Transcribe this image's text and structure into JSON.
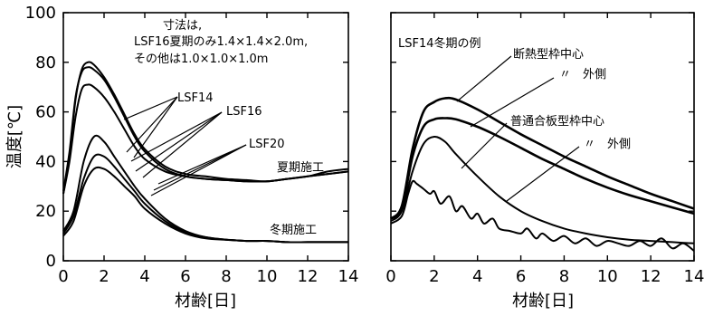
{
  "chart_data": [
    {
      "type": "line",
      "xlabel": "材齢[日]",
      "ylabel": "温度[℃]",
      "xlim": [
        0,
        14
      ],
      "ylim": [
        0,
        100
      ],
      "xticks": [
        "0",
        "2",
        "4",
        "6",
        "8",
        "10",
        "12",
        "14"
      ],
      "yticks": [
        "0",
        "20",
        "40",
        "60",
        "80",
        "100"
      ],
      "annotations": {
        "note_line1": "寸法は,",
        "note_line2": "LSF16夏期のみ1.4×1.4×2.0m,",
        "note_line3": "その他は1.0×1.0×1.0m",
        "label_lsf14": "LSF14",
        "label_lsf16": "LSF16",
        "label_lsf20": "LSF20",
        "label_summer": "夏期施工",
        "label_winter": "冬期施工"
      },
      "series": [
        {
          "x": [
            0,
            0.3,
            0.6,
            0.9,
            1.2,
            1.5,
            2,
            2.5,
            3,
            3.5,
            4,
            5,
            6,
            7,
            8,
            9,
            10,
            11,
            12,
            13,
            14
          ],
          "y": [
            27,
            42,
            65,
            77,
            80,
            79,
            74,
            67,
            59,
            51,
            45,
            38,
            35,
            34,
            33,
            32.5,
            32,
            33,
            34,
            35,
            36
          ]
        },
        {
          "x": [
            0,
            0.3,
            0.6,
            0.9,
            1.2,
            1.5,
            2,
            2.5,
            3,
            3.5,
            4,
            5,
            6,
            7,
            8,
            9,
            10,
            11,
            12,
            13,
            14
          ],
          "y": [
            28,
            44,
            66,
            76,
            78,
            77,
            73,
            66,
            58,
            50,
            44,
            37,
            34,
            33,
            32.5,
            32,
            32,
            33,
            34,
            35,
            36
          ]
        },
        {
          "x": [
            0,
            0.3,
            0.6,
            0.9,
            1.2,
            1.5,
            2,
            2.5,
            3,
            3.5,
            4,
            5,
            6,
            7,
            8,
            9,
            10,
            11,
            12,
            13,
            14
          ],
          "y": [
            27,
            40,
            58,
            69,
            71,
            70,
            66,
            60,
            53,
            46,
            41,
            36,
            34,
            33,
            32.5,
            32,
            32,
            33,
            34,
            36,
            37
          ]
        },
        {
          "x": [
            0,
            0.5,
            1,
            1.5,
            2,
            2.5,
            3,
            3.5,
            4,
            5,
            6,
            7,
            8,
            9,
            10,
            11,
            12,
            13,
            14
          ],
          "y": [
            12,
            20,
            40,
            50,
            48,
            42,
            36,
            30,
            25,
            17,
            12,
            9.5,
            8.5,
            8,
            8,
            7.5,
            7.5,
            7.5,
            7.5
          ]
        },
        {
          "x": [
            0,
            0.5,
            1,
            1.5,
            2,
            2.5,
            3,
            3.5,
            4,
            5,
            6,
            7,
            8,
            9,
            10,
            11,
            12,
            13,
            14
          ],
          "y": [
            11,
            18,
            33,
            42,
            42,
            38,
            33,
            28,
            23,
            16,
            11.5,
            9.5,
            8.5,
            8,
            8,
            7.5,
            7.5,
            7.5,
            7.5
          ]
        },
        {
          "x": [
            0,
            0.5,
            1,
            1.5,
            2,
            2.5,
            3,
            3.5,
            4,
            5,
            6,
            7,
            8,
            9,
            10,
            11,
            12,
            13,
            14
          ],
          "y": [
            10,
            16,
            30,
            37,
            37,
            34,
            30,
            26,
            21,
            15,
            11,
            9,
            8.5,
            8,
            8,
            7.5,
            7.5,
            7.5,
            7.5
          ]
        }
      ]
    },
    {
      "type": "line",
      "xlabel": "材齢[日]",
      "ylabel": "",
      "xlim": [
        0,
        14
      ],
      "ylim": [
        0,
        100
      ],
      "xticks": [
        "0",
        "2",
        "4",
        "6",
        "8",
        "10",
        "12",
        "14"
      ],
      "annotations": {
        "title": "LSF14冬期の例",
        "label_insul_center": "断熱型枠中心",
        "label_insul_outer": "〃　外側",
        "label_ply_center": "普通合板型枠中心",
        "label_ply_outer": "〃　外側"
      },
      "series": [
        {
          "x": [
            0,
            0.5,
            1,
            1.5,
            2,
            2.5,
            3,
            4,
            5,
            6,
            7,
            8,
            9,
            10,
            11,
            12,
            13,
            14
          ],
          "y": [
            17,
            22,
            45,
            60,
            64,
            65.5,
            65,
            61,
            56,
            51,
            46.5,
            42,
            38,
            34,
            30.5,
            27,
            24,
            21
          ]
        },
        {
          "x": [
            0,
            0.5,
            1,
            1.5,
            2,
            2.5,
            3,
            4,
            5,
            6,
            7,
            8,
            9,
            10,
            11,
            12,
            13,
            14
          ],
          "y": [
            17,
            21,
            42,
            54,
            57,
            57.5,
            57,
            54,
            50,
            45.5,
            41,
            37,
            33,
            29.5,
            26.5,
            24,
            21.5,
            19
          ]
        },
        {
          "x": [
            0,
            0.5,
            1,
            1.5,
            2,
            2.5,
            3,
            4,
            5,
            6,
            7,
            8,
            9,
            10,
            11,
            12,
            13,
            14
          ],
          "y": [
            16,
            20,
            36,
            47,
            50,
            48,
            43,
            34,
            26,
            20,
            16,
            13,
            11,
            9.5,
            8.5,
            8,
            7.5,
            7
          ]
        },
        {
          "x": [
            0,
            0.5,
            0.8,
            1,
            1.2,
            1.5,
            1.8,
            2,
            2.3,
            2.7,
            3,
            3.3,
            3.7,
            4,
            4.3,
            4.7,
            5,
            5.5,
            6,
            6.3,
            6.7,
            7,
            7.5,
            8,
            8.5,
            9,
            9.5,
            10,
            10.5,
            11,
            11.5,
            12,
            12.5,
            13,
            13.5,
            14
          ],
          "y": [
            15,
            18,
            27,
            32,
            31,
            29,
            27,
            28,
            23,
            26,
            20,
            22,
            17,
            19,
            15,
            17,
            13,
            12,
            11,
            13,
            9,
            11,
            8,
            10,
            7,
            9,
            6,
            8,
            7,
            6,
            8,
            6,
            9,
            5,
            7,
            4
          ]
        }
      ]
    }
  ]
}
